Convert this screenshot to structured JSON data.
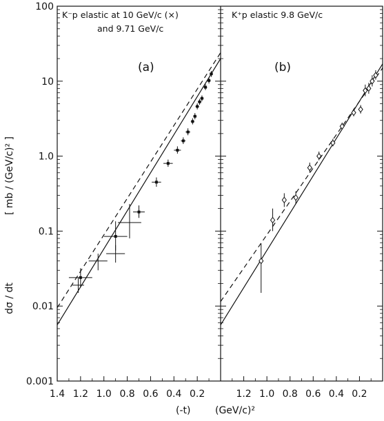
{
  "chart_data": [
    {
      "type": "scatter",
      "panel_label": "(a)",
      "title": "K⁻p elastic at 10 GeV/c (×)",
      "subtitle": "and 9.71 GeV/c",
      "xlim": [
        1.4,
        0.0
      ],
      "ylim": [
        0.001,
        100
      ],
      "yscale": "log",
      "x_ticks": [
        "1.4",
        "1.2",
        "1.0",
        "0.8",
        "0.6",
        "0.4",
        "0.2"
      ],
      "series": [
        {
          "marker": "dot",
          "points": [
            {
              "x": 1.2,
              "y": 0.024,
              "xerr": 0.1,
              "yerr_lo": 0.006,
              "yerr_hi": 0.008
            },
            {
              "x": 0.9,
              "y": 0.085,
              "xerr": 0.1,
              "yerr_lo": 0.03,
              "yerr_hi": 0.05
            },
            {
              "x": 0.7,
              "y": 0.18,
              "xerr": 0.05,
              "yerr_lo": 0.03,
              "yerr_hi": 0.04
            },
            {
              "x": 0.55,
              "y": 0.45,
              "xerr": 0.04,
              "yerr_lo": 0.06,
              "yerr_hi": 0.07
            },
            {
              "x": 0.45,
              "y": 0.8,
              "xerr": 0.04,
              "yerr_lo": 0.08,
              "yerr_hi": 0.1
            },
            {
              "x": 0.37,
              "y": 1.2,
              "xerr": 0.03,
              "yerr_lo": 0.12,
              "yerr_hi": 0.15
            },
            {
              "x": 0.32,
              "y": 1.6,
              "xerr": 0.02,
              "yerr_lo": 0.15,
              "yerr_hi": 0.18
            },
            {
              "x": 0.28,
              "y": 2.1,
              "xerr": 0.02,
              "yerr_lo": 0.2,
              "yerr_hi": 0.25
            },
            {
              "x": 0.24,
              "y": 2.9,
              "xerr": 0.015,
              "yerr_lo": 0.25,
              "yerr_hi": 0.3
            },
            {
              "x": 0.22,
              "y": 3.4,
              "xerr": 0.015,
              "yerr_lo": 0.3,
              "yerr_hi": 0.35
            },
            {
              "x": 0.2,
              "y": 4.6,
              "xerr": 0.015,
              "yerr_lo": 0.4,
              "yerr_hi": 0.45
            },
            {
              "x": 0.18,
              "y": 5.3,
              "xerr": 0.015,
              "yerr_lo": 0.45,
              "yerr_hi": 0.5
            },
            {
              "x": 0.16,
              "y": 5.9,
              "xerr": 0.015,
              "yerr_lo": 0.5,
              "yerr_hi": 0.55
            },
            {
              "x": 0.13,
              "y": 8.3,
              "xerr": 0.015,
              "yerr_lo": 0.7,
              "yerr_hi": 0.8
            },
            {
              "x": 0.1,
              "y": 10.2,
              "xerr": 0.015,
              "yerr_lo": 0.9,
              "yerr_hi": 1.0
            },
            {
              "x": 0.08,
              "y": 12.5,
              "xerr": 0.015,
              "yerr_lo": 1.1,
              "yerr_hi": 1.2
            }
          ]
        },
        {
          "marker": "cross",
          "points": [
            {
              "x": 1.22,
              "y": 0.019,
              "xerr": 0.05,
              "yerr_lo": 0.004,
              "yerr_hi": 0.005
            },
            {
              "x": 1.05,
              "y": 0.04,
              "xerr": 0.08,
              "yerr_lo": 0.01,
              "yerr_hi": 0.01
            },
            {
              "x": 0.9,
              "y": 0.05,
              "xerr": 0.08,
              "yerr_lo": 0.012,
              "yerr_hi": 0.015
            },
            {
              "x": 0.78,
              "y": 0.13,
              "xerr": 0.1,
              "yerr_lo": 0.05,
              "yerr_hi": 0.1
            }
          ]
        }
      ],
      "curves": [
        {
          "style": "solid",
          "points": [
            [
              1.4,
              0.0056
            ],
            [
              0.0,
              20
            ]
          ]
        },
        {
          "style": "dashed",
          "points": [
            [
              1.4,
              0.0095
            ],
            [
              0.0,
              24
            ]
          ]
        }
      ]
    },
    {
      "type": "scatter",
      "panel_label": "(b)",
      "title": "K⁺p  elastic  9.8  GeV/c",
      "xlim": [
        1.4,
        0.0
      ],
      "ylim": [
        0.001,
        100
      ],
      "yscale": "log",
      "x_ticks": [
        "1.2",
        "1.0",
        "0.8",
        "0.6",
        "0.4",
        "0.2"
      ],
      "series": [
        {
          "marker": "diamond",
          "points": [
            {
              "x": 1.05,
              "y": 0.04,
              "xerr": 0.0,
              "yerr_lo": 0.025,
              "yerr_hi": 0.028
            },
            {
              "x": 0.95,
              "y": 0.14,
              "xerr": 0.0,
              "yerr_lo": 0.04,
              "yerr_hi": 0.06
            },
            {
              "x": 0.85,
              "y": 0.26,
              "xerr": 0.0,
              "yerr_lo": 0.05,
              "yerr_hi": 0.06
            },
            {
              "x": 0.75,
              "y": 0.28,
              "xerr": 0.0,
              "yerr_lo": 0.05,
              "yerr_hi": 0.06
            },
            {
              "x": 0.63,
              "y": 0.7,
              "xerr": 0.0,
              "yerr_lo": 0.1,
              "yerr_hi": 0.12
            },
            {
              "x": 0.55,
              "y": 1.0,
              "xerr": 0.0,
              "yerr_lo": 0.12,
              "yerr_hi": 0.15
            },
            {
              "x": 0.43,
              "y": 1.5,
              "xerr": 0.0,
              "yerr_lo": 0.15,
              "yerr_hi": 0.2
            },
            {
              "x": 0.35,
              "y": 2.5,
              "xerr": 0.0,
              "yerr_lo": 0.25,
              "yerr_hi": 0.3
            },
            {
              "x": 0.25,
              "y": 3.8,
              "xerr": 0.0,
              "yerr_lo": 0.4,
              "yerr_hi": 0.5
            },
            {
              "x": 0.19,
              "y": 4.2,
              "xerr": 0.0,
              "yerr_lo": 0.5,
              "yerr_hi": 0.6
            },
            {
              "x": 0.15,
              "y": 7.5,
              "xerr": 0.0,
              "yerr_lo": 1.2,
              "yerr_hi": 1.5
            },
            {
              "x": 0.12,
              "y": 8.0,
              "xerr": 0.0,
              "yerr_lo": 1.2,
              "yerr_hi": 1.5
            },
            {
              "x": 0.09,
              "y": 10.0,
              "xerr": 0.0,
              "yerr_lo": 1.5,
              "yerr_hi": 2.0
            },
            {
              "x": 0.06,
              "y": 12.0,
              "xerr": 0.0,
              "yerr_lo": 1.5,
              "yerr_hi": 2.0
            }
          ]
        }
      ],
      "curves": [
        {
          "style": "solid",
          "points": [
            [
              1.4,
              0.0056
            ],
            [
              0.0,
              17
            ]
          ]
        },
        {
          "style": "dashed",
          "points": [
            [
              1.4,
              0.0115
            ],
            [
              0.0,
              15
            ]
          ]
        }
      ]
    }
  ],
  "y_tick_labels": [
    "100",
    "10",
    "1.0",
    "0.1",
    "0.01",
    "0.001"
  ],
  "y_tick_values": [
    100,
    10,
    1,
    0.1,
    0.01,
    0.001
  ],
  "ylabel_top": "[ mb / (GeV/c)² ]",
  "ylabel_bottom": "dσ / dt",
  "xlabel_left": "(-t)",
  "xlabel_right": "(GeV/c)²",
  "colors": {
    "ink": "#111111",
    "background": "#ffffff"
  }
}
